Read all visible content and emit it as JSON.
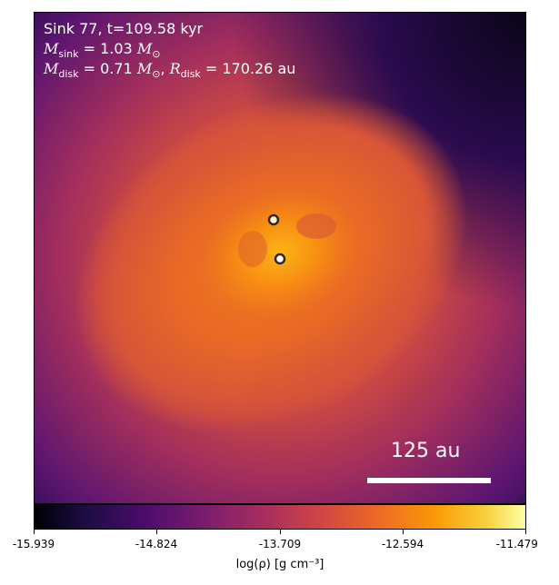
{
  "annotation": {
    "line1": "Sink 77, t=109.58 kyr",
    "msink_symbol": "M",
    "msink_sub": "sink",
    "msink_value": " = 1.03",
    "msink_unit_sub": "⊙",
    "mdisk_symbol": "M",
    "mdisk_sub": "disk",
    "mdisk_value": " = 0.71",
    "mdisk_unit_sub": "⊙",
    "rdisk_symbol": "R",
    "rdisk_sub": "disk",
    "rdisk_value": " = 170.26 au"
  },
  "scalebar_label": "125 au",
  "colorbar": {
    "ticks": [
      "-15.939",
      "-14.824",
      "-13.709",
      "-12.594",
      "-11.479"
    ],
    "label": "log(ρ) [g cm⁻³]",
    "colormap": "inferno"
  },
  "colors": {
    "sink_fill": "#ffffff",
    "sink_ring": "#2a2a2a"
  }
}
